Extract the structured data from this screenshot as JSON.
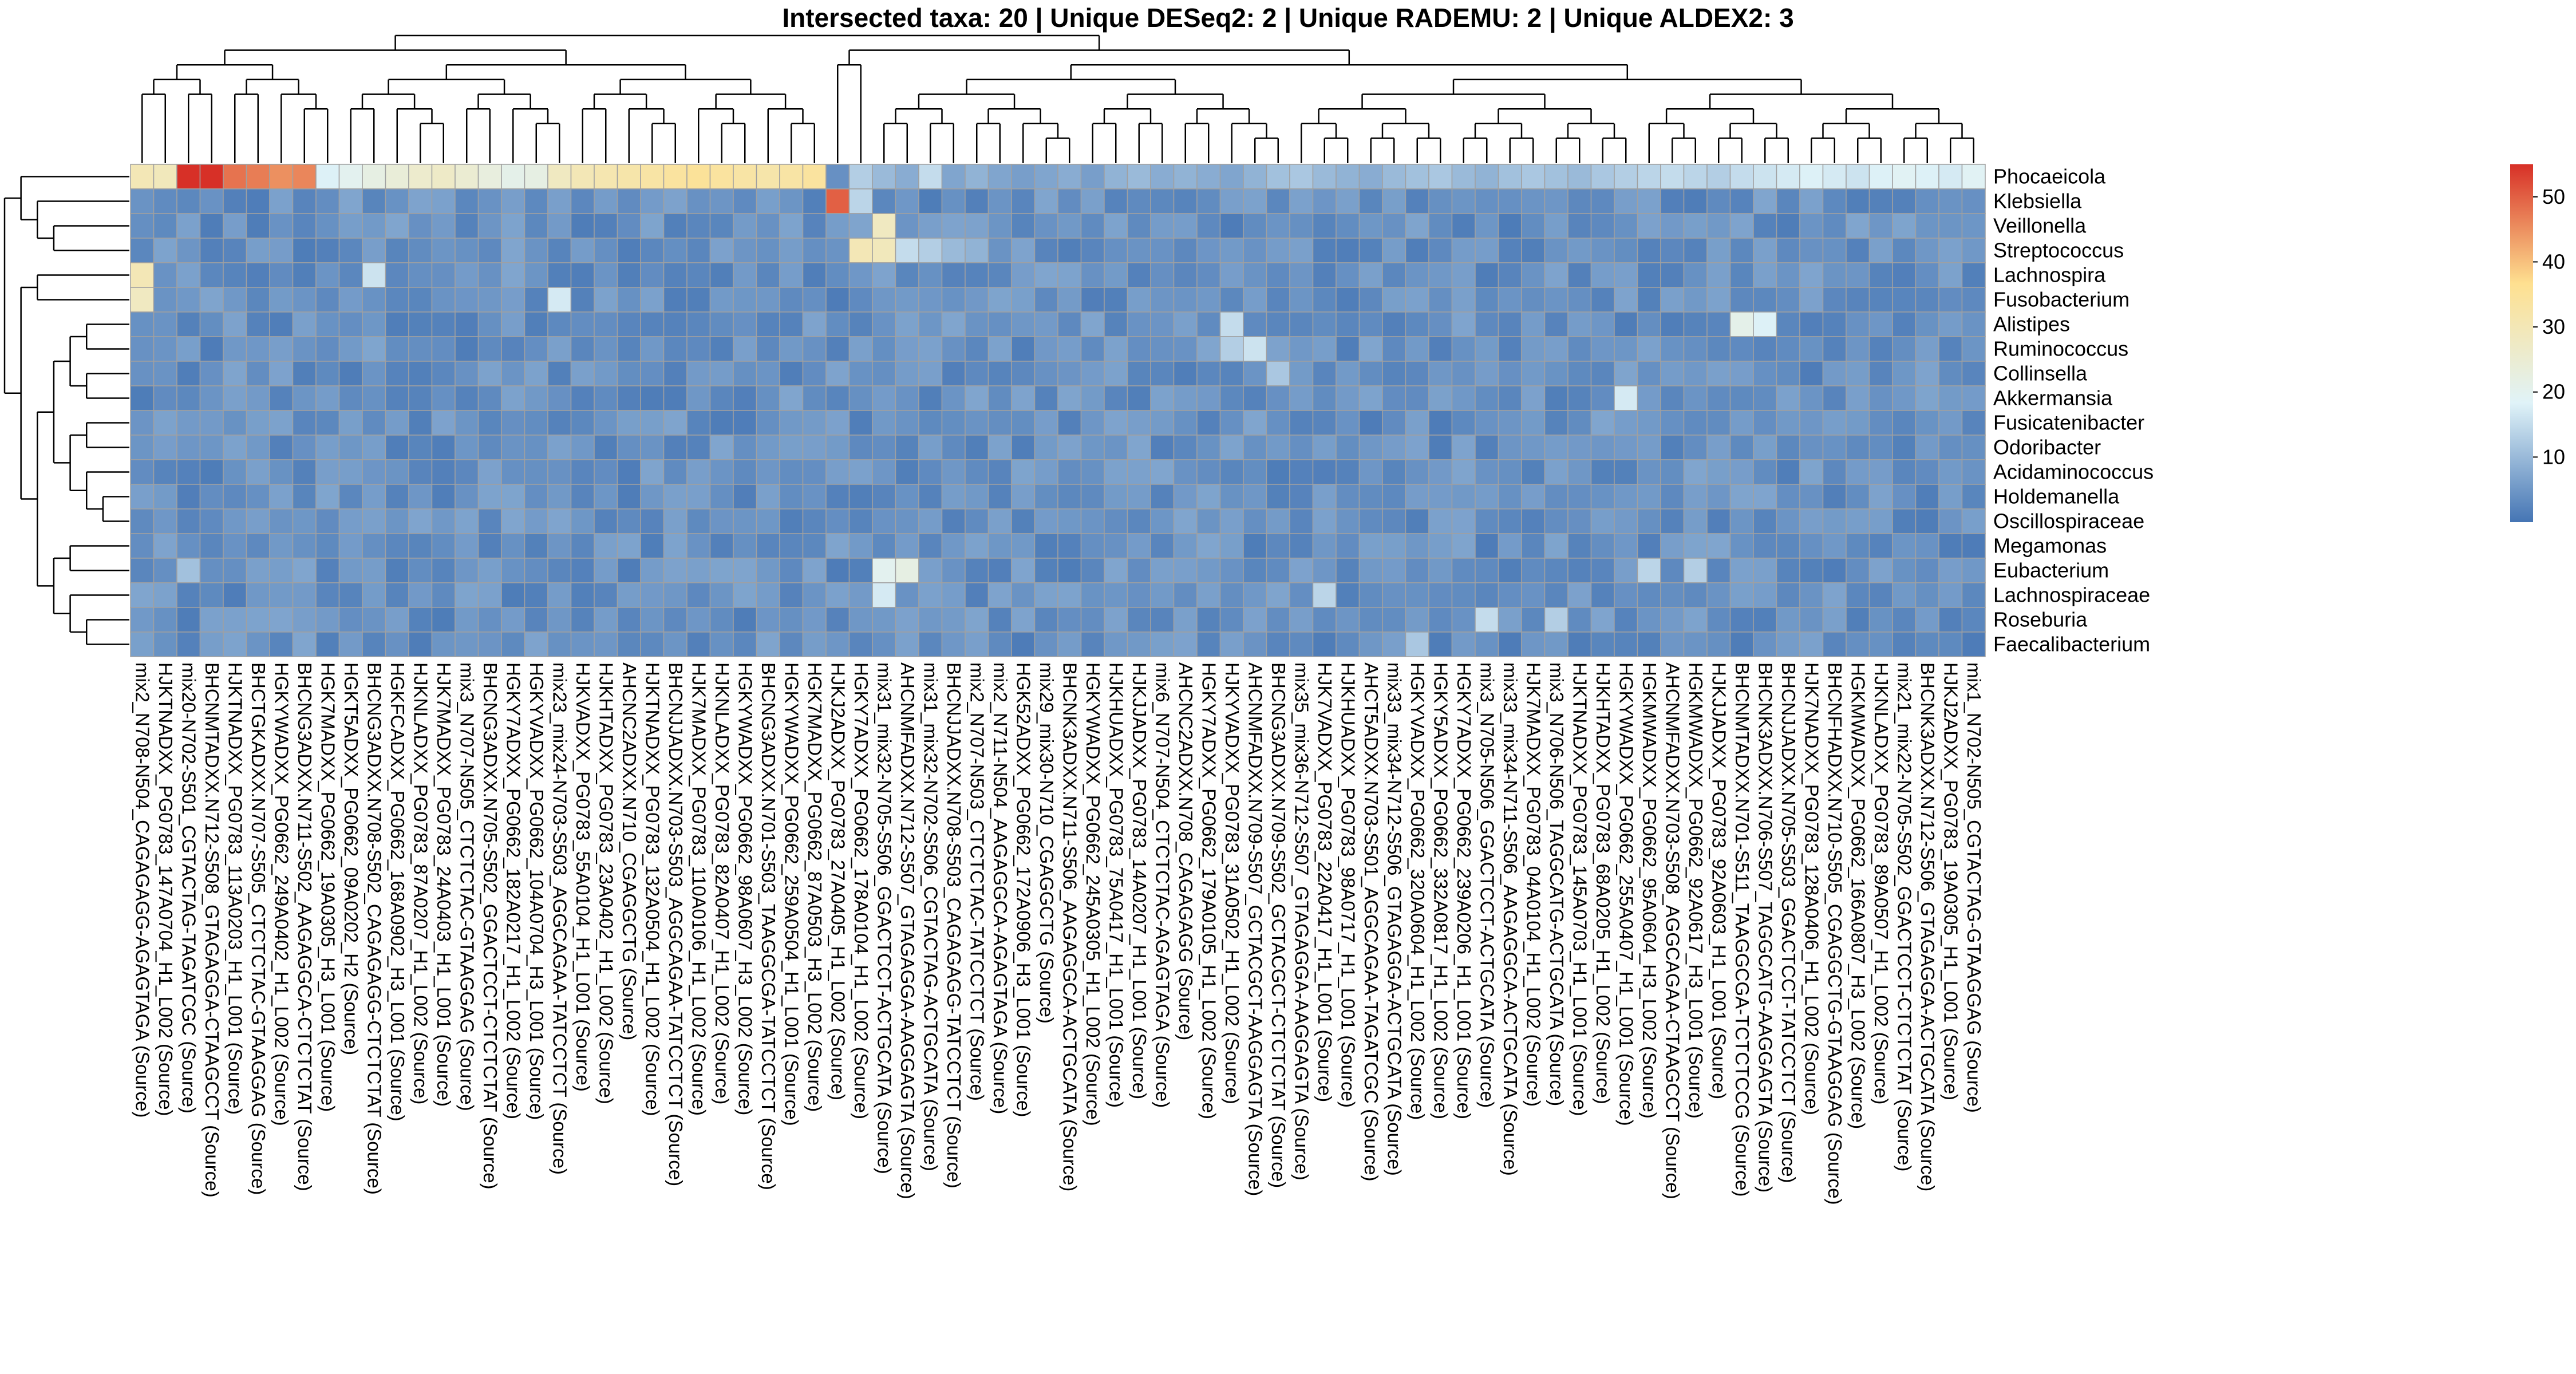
{
  "chart_data": {
    "type": "heatmap",
    "title": "Intersected taxa: 20 | Unique DESeq2: 2 | Unique RADEMU: 2 | Unique ALDEX2: 3",
    "rows": [
      "Phocaeicola",
      "Klebsiella",
      "Veillonella",
      "Streptococcus",
      "Lachnospira",
      "Fusobacterium",
      "Alistipes",
      "Ruminococcus",
      "Collinsella",
      "Akkermansia",
      "Fusicatenibacter",
      "Odoribacter",
      "Acidaminococcus",
      "Holdemanella",
      "Oscillospiraceae",
      "Megamonas",
      "Eubacterium",
      "Lachnospiraceae",
      "Roseburia",
      "Faecalibacterium"
    ],
    "columns": [
      "mix2_N708-N504_CAGAGAGG-AGAGTAGA (Source)",
      "HJKTNADXX_PG0783_147A0704_H1_L002 (Source)",
      "mix20-N702-S501_CGTACTAG-TAGATCGC (Source)",
      "BHCNMTADXX.N712-S508_GTAGAGGA-CTAAGCCT (Source)",
      "HJKTNADXX_PG0783_113A0203_H1_L001 (Source)",
      "BHCTGKADXX.N707-S505_CTCTCTAC-GTAAGGAG (Source)",
      "HGKYWADXX_PG0662_249A0402_H1_L002 (Source)",
      "BHCNG3ADXX.N711-S502_AAGAGGCA-CTCTCTAT (Source)",
      "HGK7MADXX_PG0662_19A0305_H3_L001 (Source)",
      "HGKT5ADXX_PG0662_09A0202_H2 (Source)",
      "BHCNG3ADXX.N708-S502_CAGAGAGG-CTCTCTAT (Source)",
      "HGKFCADXX_PG0662_168A0902_H3_L001 (Source)",
      "HJKNLADXX_PG0783_87A0207_H1_L002 (Source)",
      "HJK7MADXX_PG0783_24A0403_H1_L001 (Source)",
      "mix3_N707-N505_CTCTCTAC-GTAAGGAG (Source)",
      "BHCNG3ADXX.N705-S502_GGACTCCT-CTCTCTAT (Source)",
      "HGKY7ADXX_PG0662_182A0217_H1_L002 (Source)",
      "HGKYVADXX_PG0662_104A0704_H3_L001 (Source)",
      "mix23_mix24-N703-S503_AGGCAGAA-TATCCTCT (Source)",
      "HJKVADXX_PG0783_55A0104_H1_L001 (Source)",
      "HJKHTADXX_PG0783_23A0402_H1_L002 (Source)",
      "AHCNC2ADXX.N710_CGAGGCTG (Source)",
      "HJKTNADXX_PG0783_132A0504_H1_L002 (Source)",
      "BHCNJJADXX.N703-S503_AGGCAGAA-TATCCTCT (Source)",
      "HJK7MADXX_PG0783_110A0106_H1_L002 (Source)",
      "HJKNLADXX_PG0783_82A0407_H1_L002 (Source)",
      "HGKYWADXX_PG0662_98A0607_H3_L002 (Source)",
      "BHCNG3ADXX.N701-S503_TAAGGCGA-TATCCTCT (Source)",
      "HGKYWADXX_PG0662_259A0504_H1_L001 (Source)",
      "HGK7MADXX_PG0662_87A0503_H3_L002 (Source)",
      "HJKJ2ADXX_PG0783_27A0405_H1_L002 (Source)",
      "HGKY7ADXX_PG0662_178A0104_H1_L002 (Source)",
      "mix31_mix32-N705-S506_GGACTCCT-ACTGCATA (Source)",
      "AHCNMFADXX.N712-S507_GTAGAGGA-AAGGAGTA (Source)",
      "mix31_mix32-N702-S506_CGTACTAG-ACTGCATA (Source)",
      "BHCNJJADXX.N708-S503_CAGAGAGG-TATCCTCT (Source)",
      "mix2_N707-N503_CTCTCTAC-TATCCTCT (Source)",
      "mix2_N711-N504_AAGAGGCA-AGAGTAGA (Source)",
      "HGK52ADXX_PG0662_172A0906_H3_L001 (Source)",
      "mix29_mix30-N710_CGAGGCTG (Source)",
      "BHCNK3ADXX.N711-S506_AAGAGGCA-ACTGCATA (Source)",
      "HGKYWADXX_PG0662_245A0305_H1_L002 (Source)",
      "HJKHUADXX_PG0783_75A0417_H1_L001 (Source)",
      "HJKJJADXX_PG0783_14A0207_H1_L001 (Source)",
      "mix6_N707-N504_CTCTCTAC-AGAGTAGA (Source)",
      "AHCNC2ADXX.N708_CAGAGAGG (Source)",
      "HGKY7ADXX_PG0662_179A0105_H1_L002 (Source)",
      "HJKYVADXX_PG0783_31A0502_H1_L002 (Source)",
      "AHCNMFADXX.N709-S507_GCTACGCT-AAGGAGTA (Source)",
      "BHCNG3ADXX.N709-S502_GCTACGCT-CTCTCTAT (Source)",
      "mix35_mix36-N712-S507_GTAGAGGA-AAGGAGTA (Source)",
      "HJK7VADXX_PG0783_22A0417_H1_L001 (Source)",
      "HJKHUADXX_PG0783_98A0717_H1_L001 (Source)",
      "AHCT5ADXX.N703-S501_AGGCAGAA-TAGATCGC (Source)",
      "mix33_mix34-N712-S506_GTAGAGGA-ACTGCATA (Source)",
      "HGKYVADXX_PG0662_320A0604_H1_L002 (Source)",
      "HGKY5ADXX_PG0662_332A0817_H1_L002 (Source)",
      "HGKY7ADXX_PG0662_239A0206_H1_L001 (Source)",
      "mix3_N705-N506_GGACTCCT-ACTGCATA (Source)",
      "mix33_mix34-N711-S506_AAGAGGCA-ACTGCATA (Source)",
      "HJK7MADXX_PG0783_04A0104_H1_L002 (Source)",
      "mix3_N706-N506_TAGGCATG-ACTGCATA (Source)",
      "HJKTNADXX_PG0783_145A0703_H1_L001 (Source)",
      "HJKHTADXX_PG0783_68A0205_H1_L002 (Source)",
      "HGKYWADXX_PG0662_255A0407_H1_L001 (Source)",
      "HGKMWADXX_PG0662_95A0604_H3_L002 (Source)",
      "AHCNMFADXX.N703-S508_AGGCAGAA-CTAAGCCT (Source)",
      "HGKMWADXX_PG0662_92A0617_H3_L001 (Source)",
      "HJKJJADXX_PG0783_92A0603_H1_L001 (Source)",
      "BHCNMTADXX.N701-S511_TAAGGCGA-TCTCTCCG (Source)",
      "BHCNK3ADXX.N706-S507_TAGGCATG-AAGGAGTA (Source)",
      "BHCNJJADXX.N705-S503_GGACTCCT-TATCCTCT (Source)",
      "HJK7NADXX_PG0783_128A0406_H1_L002 (Source)",
      "BHCNFHADXX.N710-S505_CGAGGCTG-GTAAGGAG (Source)",
      "HGKMWADXX_PG0662_166A0807_H3_L002 (Source)",
      "HJKNLADXX_PG0783_89A0507_H1_L002 (Source)",
      "mix21_mix22-N705-S502_GGACTCCT-CTCTCTAT (Source)",
      "BHCNK3ADXX.N712-S506_GTAGAGGA-ACTGCATA (Source)",
      "HJKJ2ADXX_PG0783_19A0305_H1_L001 (Source)",
      "mix1_N702-N505_CGTACTAG-GTAAGGAG (Source)"
    ],
    "colorbar": {
      "min": 0,
      "max": 55,
      "ticks": [
        10,
        20,
        30,
        40,
        50
      ],
      "colors": [
        "#4575b4",
        "#e0f3f8",
        "#fee090",
        "#d73027"
      ]
    },
    "phocaeicola_values": [
      30,
      29,
      55,
      55,
      48,
      47,
      45,
      46,
      18,
      20,
      22,
      24,
      26,
      27,
      25,
      23,
      21,
      22,
      28,
      30,
      31,
      32,
      33,
      34,
      35,
      34,
      33,
      32,
      33,
      34,
      4,
      13,
      10,
      8,
      15,
      7,
      9,
      7,
      6,
      7,
      8,
      6,
      9,
      10,
      8,
      9,
      8,
      7,
      9,
      11,
      12,
      10,
      9,
      8,
      10,
      11,
      12,
      10,
      9,
      11,
      12,
      11,
      10,
      12,
      13,
      14,
      15,
      14,
      13,
      15,
      16,
      17,
      18,
      17,
      16,
      18,
      19,
      18,
      17,
      19
    ],
    "cell_overrides": [
      {
        "row": 1,
        "col": 30,
        "value": 50
      },
      {
        "row": 1,
        "col": 31,
        "value": 14
      },
      {
        "row": 2,
        "col": 32,
        "value": 28
      },
      {
        "row": 3,
        "col": 31,
        "value": 30
      },
      {
        "row": 3,
        "col": 32,
        "value": 29
      },
      {
        "row": 3,
        "col": 33,
        "value": 15
      },
      {
        "row": 3,
        "col": 34,
        "value": 13
      },
      {
        "row": 3,
        "col": 35,
        "value": 10
      },
      {
        "row": 3,
        "col": 36,
        "value": 9
      },
      {
        "row": 4,
        "col": 0,
        "value": 30
      },
      {
        "row": 5,
        "col": 0,
        "value": 28
      },
      {
        "row": 4,
        "col": 10,
        "value": 16
      },
      {
        "row": 5,
        "col": 18,
        "value": 17
      },
      {
        "row": 6,
        "col": 69,
        "value": 21
      },
      {
        "row": 6,
        "col": 70,
        "value": 18
      },
      {
        "row": 6,
        "col": 47,
        "value": 15
      },
      {
        "row": 7,
        "col": 48,
        "value": 16
      },
      {
        "row": 7,
        "col": 47,
        "value": 13
      },
      {
        "row": 8,
        "col": 49,
        "value": 12
      },
      {
        "row": 9,
        "col": 64,
        "value": 17
      },
      {
        "row": 16,
        "col": 32,
        "value": 20
      },
      {
        "row": 16,
        "col": 33,
        "value": 22
      },
      {
        "row": 16,
        "col": 2,
        "value": 11
      },
      {
        "row": 16,
        "col": 65,
        "value": 14
      },
      {
        "row": 16,
        "col": 67,
        "value": 13
      },
      {
        "row": 17,
        "col": 32,
        "value": 17
      },
      {
        "row": 17,
        "col": 51,
        "value": 14
      },
      {
        "row": 18,
        "col": 58,
        "value": 15
      },
      {
        "row": 18,
        "col": 61,
        "value": 13
      },
      {
        "row": 19,
        "col": 55,
        "value": 12
      }
    ]
  }
}
